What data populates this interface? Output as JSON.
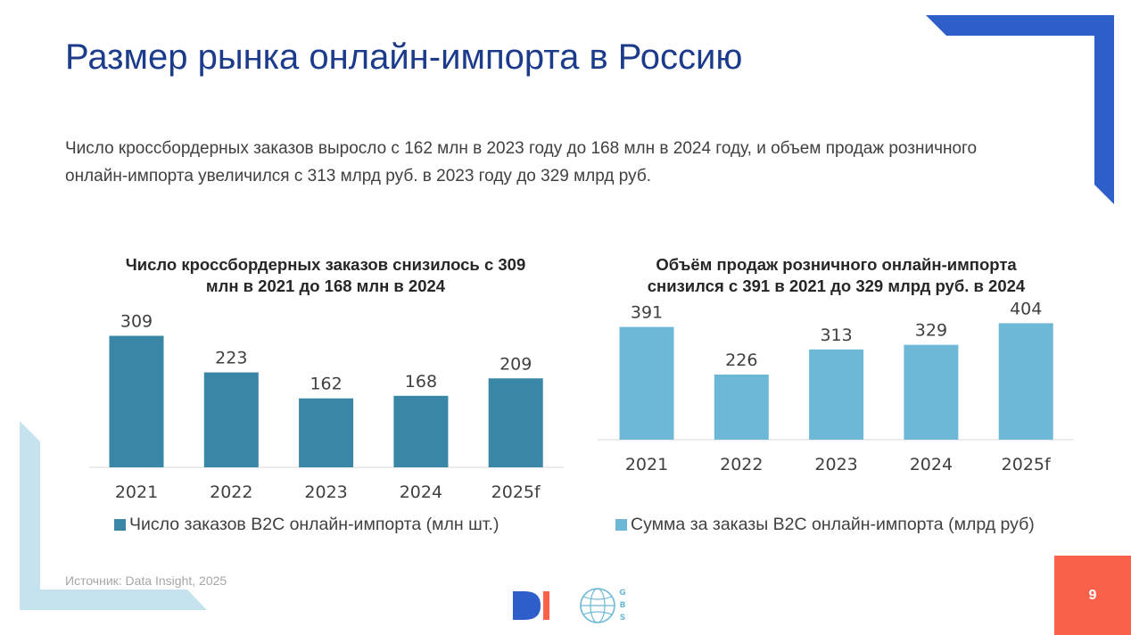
{
  "slide": {
    "title": "Размер рынка онлайн-импорта в Россию",
    "subtitle": "Число кроссбордерных заказов выросло с 162 млн в 2023 году до 168 млн в 2024 году, и объем продаж розничного онлайн-импорта увеличился с 313 млрд руб. в 2023 году до 329 млрд руб.",
    "source": "Источник: Data Insight, 2025",
    "page_number": "9",
    "logo_di": "DI",
    "logo_gbs": "GBS"
  },
  "colors": {
    "title": "#1d3b8b",
    "accent_blue": "#2e5ec9",
    "light_blue": "#c5e2ef",
    "bar_left": "#3986a6",
    "bar_right": "#6cb8d6",
    "page_badge": "#f9614a"
  },
  "chart_data": [
    {
      "type": "bar",
      "title": "Число кроссбордерных заказов снизилось с 309 млн в 2021 до 168 млн в 2024",
      "categories": [
        "2021",
        "2022",
        "2023",
        "2024",
        "2025f"
      ],
      "series": [
        {
          "name": "Число заказов B2C онлайн-импорта (млн шт.)",
          "values": [
            309,
            223,
            162,
            168,
            209
          ]
        }
      ],
      "ylim": [
        0,
        330
      ],
      "grid": false,
      "legend": "bottom"
    },
    {
      "type": "bar",
      "title": "Объём продаж розничного онлайн-импорта снизился с 391 в 2021 до 329 млрд руб. в 2024",
      "categories": [
        "2021",
        "2022",
        "2023",
        "2024",
        "2025f"
      ],
      "series": [
        {
          "name": "Сумма за заказы B2C онлайн-импорта (млрд руб)",
          "values": [
            391,
            226,
            313,
            329,
            404
          ]
        }
      ],
      "ylim": [
        0,
        430
      ],
      "grid": false,
      "legend": "bottom"
    }
  ]
}
